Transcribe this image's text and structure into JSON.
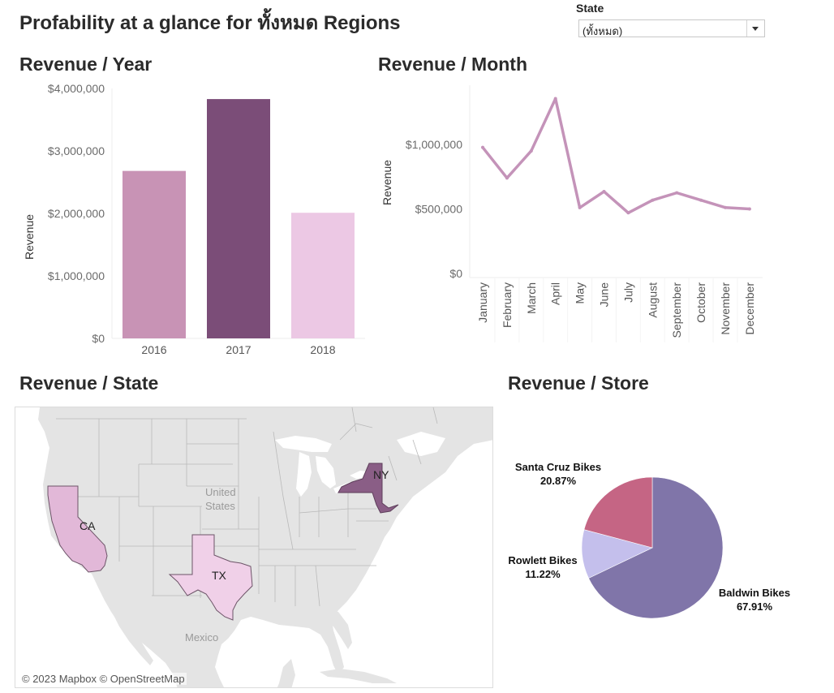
{
  "page": {
    "title": "Profability at a glance for ทั้งหมด Regions"
  },
  "filter": {
    "label": "State",
    "selected": "(ทั้งหมด)"
  },
  "sections": {
    "year": "Revenue / Year",
    "month": "Revenue / Month",
    "state": "Revenue / State",
    "store": "Revenue / Store"
  },
  "colors": {
    "bar_2016": "#c893b5",
    "bar_2017": "#7b4d78",
    "bar_2018": "#ecc8e4",
    "line": "#c493b9",
    "ca": "#e2b8d8",
    "tx": "#f0d0e8",
    "ny": "#8a5e86",
    "pie_baldwin": "#8075a9",
    "pie_rowlett": "#c4bfec",
    "pie_santacruz": "#c56584",
    "land": "#e4e4e4",
    "water": "#ffffff"
  },
  "chart_data": [
    {
      "type": "bar",
      "title": "Revenue / Year",
      "xlabel": "",
      "ylabel": "Revenue",
      "categories": [
        "2016",
        "2017",
        "2018"
      ],
      "values": [
        2680000,
        3830000,
        2010000
      ],
      "ylim": [
        0,
        4000000
      ],
      "yticks": [
        0,
        1000000,
        2000000,
        3000000,
        4000000
      ],
      "ytick_labels": [
        "$0",
        "$1,000,000",
        "$2,000,000",
        "$3,000,000",
        "$4,000,000"
      ],
      "grid": false
    },
    {
      "type": "line",
      "title": "Revenue / Month",
      "xlabel": "",
      "ylabel": "Revenue",
      "categories": [
        "January",
        "February",
        "March",
        "April",
        "May",
        "June",
        "July",
        "August",
        "September",
        "October",
        "November",
        "December"
      ],
      "values": [
        977000,
        740000,
        950000,
        1355000,
        510000,
        635000,
        470000,
        568000,
        625000,
        568000,
        511000,
        500000
      ],
      "ylim": [
        0,
        1450000
      ],
      "yticks": [
        0,
        500000,
        1000000
      ],
      "ytick_labels": [
        "$0",
        "$500,000",
        "$1,000,000"
      ],
      "grid": false
    },
    {
      "type": "pie",
      "title": "Revenue / Store",
      "slices": [
        {
          "label": "Baldwin Bikes",
          "percent_label": "67.91%",
          "value": 67.91
        },
        {
          "label": "Rowlett Bikes",
          "percent_label": "11.22%",
          "value": 11.22
        },
        {
          "label": "Santa Cruz Bikes",
          "percent_label": "20.87%",
          "value": 20.87
        }
      ]
    }
  ],
  "map": {
    "title": "Revenue / State",
    "states": [
      {
        "code": "CA",
        "label": "CA"
      },
      {
        "code": "TX",
        "label": "TX"
      },
      {
        "code": "NY",
        "label": "NY"
      }
    ],
    "place_labels": [
      "United",
      "States",
      "Mexico"
    ],
    "attribution": "© 2023 Mapbox © OpenStreetMap"
  }
}
